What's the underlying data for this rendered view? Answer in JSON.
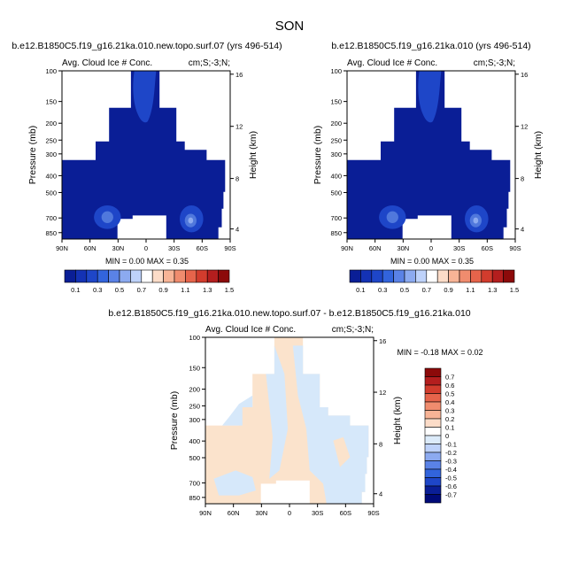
{
  "page_title": "SON",
  "chart_data": [
    {
      "type": "heatmap",
      "panel": "top-left",
      "title": "b.e12.B1850C5.f19_g16.21ka.010.new.topo.surf.07 (yrs 496-514)",
      "left_string": "Avg. Cloud Ice # Conc.",
      "right_string": "cm;S;-3;N;",
      "ylabel": "Pressure (mb)",
      "ylabel_right": "Height (km)",
      "x_ticks": [
        "90N",
        "60N",
        "30N",
        "0",
        "30S",
        "60S",
        "90S"
      ],
      "y_ticks": [
        "100",
        "150",
        "200",
        "250",
        "300",
        "400",
        "500",
        "700",
        "850"
      ],
      "y_ticks_right": [
        "16",
        "12",
        "8",
        "4"
      ],
      "stats": "MIN =   0.00  MAX =   0.35",
      "colorbar_labels": [
        "0.1",
        "0.3",
        "0.5",
        "0.7",
        "0.9",
        "1.1",
        "1.3",
        "1.5"
      ]
    },
    {
      "type": "heatmap",
      "panel": "top-right",
      "title": "b.e12.B1850C5.f19_g16.21ka.010 (yrs 496-514)",
      "left_string": "Avg. Cloud Ice # Conc.",
      "right_string": "cm;S;-3;N;",
      "ylabel": "Pressure (mb)",
      "ylabel_right": "Height (km)",
      "x_ticks": [
        "90N",
        "60N",
        "30N",
        "0",
        "30S",
        "60S",
        "90S"
      ],
      "y_ticks": [
        "100",
        "150",
        "200",
        "250",
        "300",
        "400",
        "500",
        "700",
        "850"
      ],
      "y_ticks_right": [
        "16",
        "12",
        "8",
        "4"
      ],
      "stats": "MIN =   0.00  MAX =   0.35",
      "colorbar_labels": [
        "0.1",
        "0.3",
        "0.5",
        "0.7",
        "0.9",
        "1.1",
        "1.3",
        "1.5"
      ]
    },
    {
      "type": "heatmap",
      "panel": "bottom",
      "title": "b.e12.B1850C5.f19_g16.21ka.010.new.topo.surf.07 - b.e12.B1850C5.f19_g16.21ka.010",
      "left_string": "Avg. Cloud Ice # Conc.",
      "right_string": "cm;S;-3;N;",
      "ylabel": "Pressure (mb)",
      "ylabel_right": "Height (km)",
      "x_ticks": [
        "90N",
        "60N",
        "30N",
        "0",
        "30S",
        "60S",
        "90S"
      ],
      "y_ticks": [
        "100",
        "150",
        "200",
        "250",
        "300",
        "400",
        "500",
        "700",
        "850"
      ],
      "y_ticks_right": [
        "16",
        "12",
        "8",
        "4"
      ],
      "stats": "MIN =  -0.18  MAX =   0.02",
      "colorbar_labels": [
        "0.7",
        "0.6",
        "0.5",
        "0.4",
        "0.3",
        "0.2",
        "0.1",
        "0",
        "-0.1",
        "-0.2",
        "-0.3",
        "-0.4",
        "-0.5",
        "-0.6",
        "-0.7"
      ]
    }
  ],
  "colors": {
    "field_dark": "#0a1e96",
    "field_mid": "#1e46c8",
    "field_light": "#5078dc",
    "field_pale": "#8caaf0",
    "diff_neg": "#d6e8fa",
    "diff_pos": "#fbe3cc",
    "abs_colorbar": [
      "#0a1e96",
      "#1432b4",
      "#1e46c8",
      "#3264dc",
      "#5a82e6",
      "#8caaf0",
      "#bed2fa",
      "#ffffff",
      "#fcdcc8",
      "#f8b496",
      "#f08c6e",
      "#e6644b",
      "#d23c2d",
      "#b41e1e",
      "#8c0a0a"
    ],
    "diff_colorbar": [
      "#8c0a0a",
      "#b41e1e",
      "#d23c2d",
      "#e6644b",
      "#f08c6e",
      "#f8b496",
      "#fcdcc8",
      "#ffffff",
      "#dcebfa",
      "#bed2fa",
      "#8caaf0",
      "#5a82e6",
      "#3264dc",
      "#1e46c8",
      "#0a1e96",
      "#000a78"
    ]
  }
}
